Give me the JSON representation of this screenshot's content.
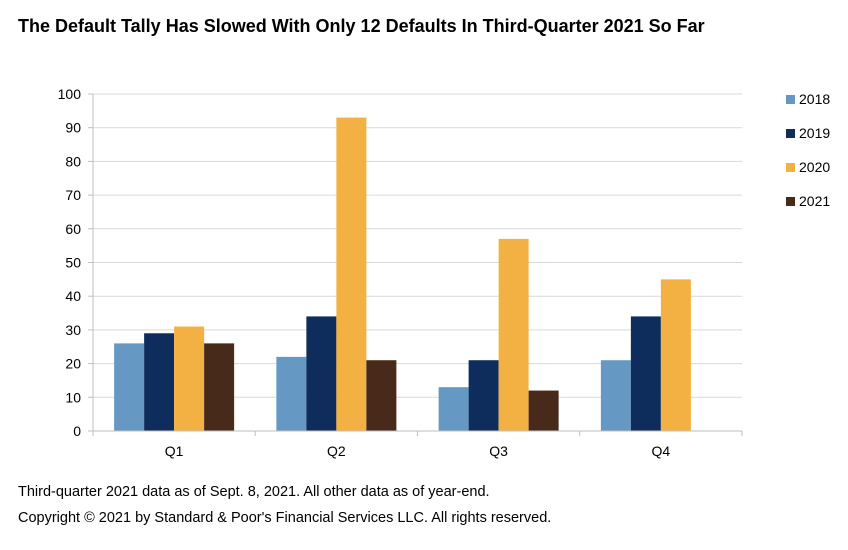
{
  "chart_data": {
    "type": "bar",
    "title": "The Default Tally Has Slowed With Only 12 Defaults In Third-Quarter 2021 So Far",
    "categories": [
      "Q1",
      "Q2",
      "Q3",
      "Q4"
    ],
    "series": [
      {
        "name": "2018",
        "color": "#6599c4",
        "values": [
          26,
          22,
          13,
          21
        ]
      },
      {
        "name": "2019",
        "color": "#0e2c5c",
        "values": [
          29,
          34,
          21,
          34
        ]
      },
      {
        "name": "2020",
        "color": "#f4b143",
        "values": [
          31,
          93,
          57,
          45
        ]
      },
      {
        "name": "2021",
        "color": "#472a1a",
        "values": [
          26,
          21,
          12,
          null
        ]
      }
    ],
    "ylim": [
      0,
      100
    ],
    "yticks": [
      0,
      10,
      20,
      30,
      40,
      50,
      60,
      70,
      80,
      90,
      100
    ],
    "grid": true,
    "legend": "right",
    "xlabel": "",
    "ylabel": ""
  },
  "notes": {
    "data_note": "Third-quarter 2021 data as of Sept. 8, 2021. All other data as of year-end.",
    "copyright": "Copyright © 2021 by Standard & Poor's Financial Services LLC. All rights reserved."
  }
}
